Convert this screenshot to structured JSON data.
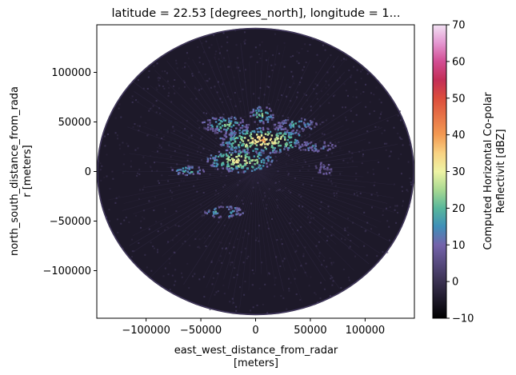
{
  "chart_data": {
    "type": "heatmap",
    "title": "latitude = 22.53 [degrees_north], longitude = 1...",
    "xlabel_line1": "east_west_distance_from_radar",
    "xlabel_line2": "[meters]",
    "ylabel_line1": "north_south_distance_from_rada",
    "ylabel_line2": "r [meters]",
    "xlim": [
      -145000,
      145000
    ],
    "ylim": [
      -148000,
      148000
    ],
    "x_ticks": [
      -100000,
      -50000,
      0,
      50000,
      100000
    ],
    "y_ticks": [
      -100000,
      -50000,
      0,
      50000,
      100000
    ],
    "x_tick_labels": [
      "−100000",
      "−50000",
      "0",
      "50000",
      "100000"
    ],
    "y_tick_labels": [
      "−100000",
      "−50000",
      "0",
      "50000",
      "100000"
    ],
    "radar_range_m": 145000,
    "grid": false,
    "colormap": "Spectral_r",
    "colorbar": {
      "label_line1": "Computed Horizontal Co-polar",
      "label_line2": "Reflectivit [dBZ]",
      "range": [
        -10,
        70
      ],
      "ticks": [
        -10,
        0,
        10,
        20,
        30,
        40,
        50,
        60,
        70
      ],
      "tick_labels": [
        "−10",
        "0",
        "10",
        "20",
        "30",
        "40",
        "50",
        "60",
        "70"
      ],
      "stops": [
        {
          "value": -10,
          "color": "#000000"
        },
        {
          "value": 0,
          "color": "#3a3151"
        },
        {
          "value": 10,
          "color": "#7463ab"
        },
        {
          "value": 15,
          "color": "#3f8fb8"
        },
        {
          "value": 20,
          "color": "#58b79b"
        },
        {
          "value": 25,
          "color": "#a8d992"
        },
        {
          "value": 30,
          "color": "#eef3a4"
        },
        {
          "value": 35,
          "color": "#f8d282"
        },
        {
          "value": 40,
          "color": "#f39a52"
        },
        {
          "value": 50,
          "color": "#dc4d3c"
        },
        {
          "value": 55,
          "color": "#c32e57"
        },
        {
          "value": 60,
          "color": "#d24d93"
        },
        {
          "value": 65,
          "color": "#e497d1"
        },
        {
          "value": 70,
          "color": "#f3e2f4"
        }
      ]
    },
    "background_reflectivity_dbz": -5,
    "echo_regions": [
      {
        "name": "main-cell",
        "center": [
          5000,
          32000
        ],
        "radii": [
          40000,
          13000
        ],
        "peak_dbz": 38
      },
      {
        "name": "north-west-band",
        "center": [
          -28000,
          48000
        ],
        "radii": [
          22000,
          9000
        ],
        "peak_dbz": 22
      },
      {
        "name": "north-cell",
        "center": [
          5000,
          58000
        ],
        "radii": [
          11000,
          9000
        ],
        "peak_dbz": 24
      },
      {
        "name": "north-east-band",
        "center": [
          35000,
          48000
        ],
        "radii": [
          20000,
          7000
        ],
        "peak_dbz": 18
      },
      {
        "name": "central-core",
        "center": [
          -15000,
          12000
        ],
        "radii": [
          30000,
          12000
        ],
        "peak_dbz": 34
      },
      {
        "name": "west-arm",
        "center": [
          -62000,
          2000
        ],
        "radii": [
          15000,
          5000
        ],
        "peak_dbz": 20
      },
      {
        "name": "south-west-cell",
        "center": [
          -30000,
          -40000
        ],
        "radii": [
          18000,
          6000
        ],
        "peak_dbz": 22
      },
      {
        "name": "east-extension",
        "center": [
          55000,
          26000
        ],
        "radii": [
          20000,
          5000
        ],
        "peak_dbz": 14
      },
      {
        "name": "east-patch",
        "center": [
          62000,
          4000
        ],
        "radii": [
          9000,
          6000
        ],
        "peak_dbz": 8
      }
    ]
  }
}
